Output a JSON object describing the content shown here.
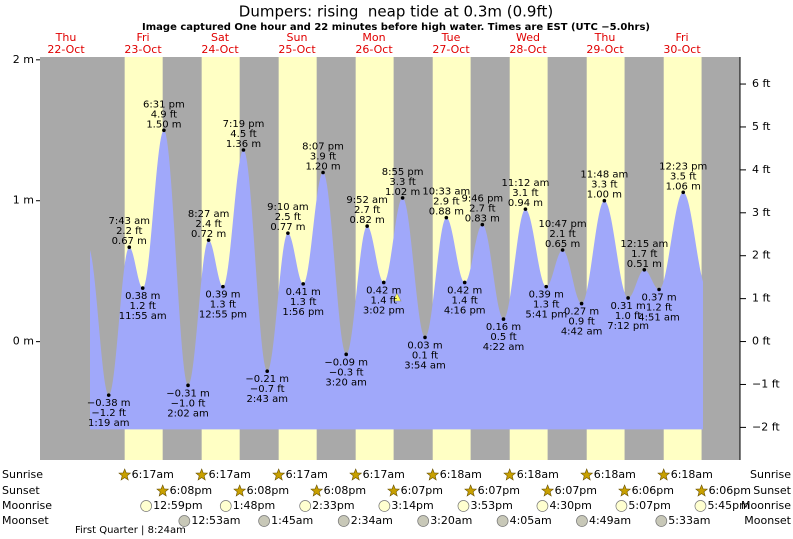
{
  "header": {
    "title": "Dumpers: rising  neap tide at 0.3m (0.9ft)",
    "subtitle": "Image captured One hour and 22 minutes before high water. Times are EST (UTC −5.0hrs)"
  },
  "chart_data": {
    "type": "tide",
    "ylim": [
      -0.84,
      2.02
    ],
    "yticks": [
      {
        "value": 0,
        "label": "0 m"
      },
      {
        "value": 1,
        "label": "1 m"
      },
      {
        "value": 2,
        "label": "2 m"
      }
    ],
    "y2lim": [
      -2.76,
      6.63
    ],
    "y2ticks": [
      {
        "value": -2,
        "label": "−2 ft"
      },
      {
        "value": -1,
        "label": "−1 ft"
      },
      {
        "value": 0,
        "label": "0 ft"
      },
      {
        "value": 1,
        "label": "1 ft"
      },
      {
        "value": 2,
        "label": "2 ft"
      },
      {
        "value": 3,
        "label": "3 ft"
      },
      {
        "value": 4,
        "label": "4 ft"
      },
      {
        "value": 5,
        "label": "5 ft"
      },
      {
        "value": 6,
        "label": "6 ft"
      }
    ],
    "water_color": "#a0a8fa",
    "day_color": "#ffffc4",
    "night_color": "#a9a9a9",
    "days": [
      {
        "dow": "Thu",
        "date": "22-Oct"
      },
      {
        "dow": "Fri",
        "date": "23-Oct",
        "sunrise": "6:17am",
        "sunset": "6:08pm",
        "moonrise": "12:59pm",
        "tides": [
          {
            "time": "1:19 am",
            "m": -0.38,
            "m_label": "−0.38 m",
            "ft_label": "−1.2 ft"
          },
          {
            "time": "7:43 am",
            "m": 0.67,
            "m_label": "0.67 m",
            "ft_label": "2.2 ft"
          },
          {
            "time": "11:55 am",
            "m": 0.38,
            "m_label": "0.38 m",
            "ft_label": "1.2 ft"
          },
          {
            "time": "6:31 pm",
            "m": 1.5,
            "m_label": "1.50 m",
            "ft_label": "4.9 ft"
          }
        ]
      },
      {
        "dow": "Sat",
        "date": "24-Oct",
        "sunrise": "6:17am",
        "sunset": "6:08pm",
        "moonrise": "1:48pm",
        "moonset": "12:53am",
        "tides": [
          {
            "time": "2:02 am",
            "m": -0.31,
            "m_label": "−0.31 m",
            "ft_label": "−1.0 ft"
          },
          {
            "time": "8:27 am",
            "m": 0.72,
            "m_label": "0.72 m",
            "ft_label": "2.4 ft"
          },
          {
            "time": "12:55 pm",
            "m": 0.39,
            "m_label": "0.39 m",
            "ft_label": "1.3 ft"
          },
          {
            "time": "7:19 pm",
            "m": 1.36,
            "m_label": "1.36 m",
            "ft_label": "4.5 ft"
          }
        ]
      },
      {
        "dow": "Sun",
        "date": "25-Oct",
        "sunrise": "6:17am",
        "sunset": "6:08pm",
        "moonrise": "2:33pm",
        "moonset": "1:45am",
        "tides": [
          {
            "time": "2:43 am",
            "m": -0.21,
            "m_label": "−0.21 m",
            "ft_label": "−0.7 ft"
          },
          {
            "time": "9:10 am",
            "m": 0.77,
            "m_label": "0.77 m",
            "ft_label": "2.5 ft"
          },
          {
            "time": "1:56 pm",
            "m": 0.41,
            "m_label": "0.41 m",
            "ft_label": "1.3 ft"
          },
          {
            "time": "8:07 pm",
            "m": 1.2,
            "m_label": "1.20 m",
            "ft_label": "3.9 ft"
          }
        ]
      },
      {
        "dow": "Mon",
        "date": "26-Oct",
        "sunrise": "6:17am",
        "sunset": "6:07pm",
        "moonrise": "3:14pm",
        "moonset": "2:34am",
        "tides": [
          {
            "time": "3:20 am",
            "m": -0.09,
            "m_label": "−0.09 m",
            "ft_label": "−0.3 ft"
          },
          {
            "time": "9:52 am",
            "m": 0.82,
            "m_label": "0.82 m",
            "ft_label": "2.7 ft"
          },
          {
            "time": "3:02 pm",
            "m": 0.42,
            "m_label": "0.42 m",
            "ft_label": "1.4 ft"
          },
          {
            "time": "8:55 pm",
            "m": 1.02,
            "m_label": "1.02 m",
            "ft_label": "3.3 ft"
          }
        ]
      },
      {
        "dow": "Tue",
        "date": "27-Oct",
        "sunrise": "6:18am",
        "sunset": "6:07pm",
        "moonrise": "3:53pm",
        "moonset": "3:20am",
        "tides": [
          {
            "time": "3:54 am",
            "m": 0.03,
            "m_label": "0.03 m",
            "ft_label": "0.1 ft"
          },
          {
            "time": "10:33 am",
            "m": 0.88,
            "m_label": "0.88 m",
            "ft_label": "2.9 ft"
          },
          {
            "time": "4:16 pm",
            "m": 0.42,
            "m_label": "0.42 m",
            "ft_label": "1.4 ft"
          },
          {
            "time": "9:46 pm",
            "m": 0.83,
            "m_label": "0.83 m",
            "ft_label": "2.7 ft"
          }
        ]
      },
      {
        "dow": "Wed",
        "date": "28-Oct",
        "sunrise": "6:18am",
        "sunset": "6:07pm",
        "moonrise": "4:30pm",
        "moonset": "4:05am",
        "tides": [
          {
            "time": "4:22 am",
            "m": 0.16,
            "m_label": "0.16 m",
            "ft_label": "0.5 ft"
          },
          {
            "time": "11:12 am",
            "m": 0.94,
            "m_label": "0.94 m",
            "ft_label": "3.1 ft"
          },
          {
            "time": "5:41 pm",
            "m": 0.39,
            "m_label": "0.39 m",
            "ft_label": "1.3 ft"
          },
          {
            "time": "10:47 pm",
            "m": 0.65,
            "m_label": "0.65 m",
            "ft_label": "2.1 ft"
          }
        ]
      },
      {
        "dow": "Thu",
        "date": "29-Oct",
        "sunrise": "6:18am",
        "sunset": "6:06pm",
        "moonrise": "5:07pm",
        "moonset": "4:49am",
        "tides": [
          {
            "time": "4:42 am",
            "m": 0.27,
            "m_label": "0.27 m",
            "ft_label": "0.9 ft"
          },
          {
            "time": "11:48 am",
            "m": 1.0,
            "m_label": "1.00 m",
            "ft_label": "3.3 ft"
          },
          {
            "time": "7:12 pm",
            "m": 0.31,
            "m_label": "0.31 m",
            "ft_label": "1.0 ft"
          }
        ]
      },
      {
        "dow": "Fri",
        "date": "30-Oct",
        "sunrise": "6:18am",
        "sunset": "6:06pm",
        "moonrise": "5:45pm",
        "moonset": "5:33am",
        "tides": [
          {
            "time": "12:15 am",
            "m": 0.51,
            "m_label": "0.51 m",
            "ft_label": "1.7 ft"
          },
          {
            "time": "4:51 am",
            "m": 0.37,
            "m_label": "0.37 m",
            "ft_label": "1.2 ft"
          },
          {
            "time": "12:23 pm",
            "m": 1.06,
            "m_label": "1.06 m",
            "ft_label": "3.5 ft"
          }
        ]
      }
    ],
    "row_labels": {
      "sunrise": "Sunrise",
      "sunset": "Sunset",
      "moonrise": "Moonrise",
      "moonset": "Moonset"
    },
    "moon_phase": "First Quarter | 8:24am"
  }
}
